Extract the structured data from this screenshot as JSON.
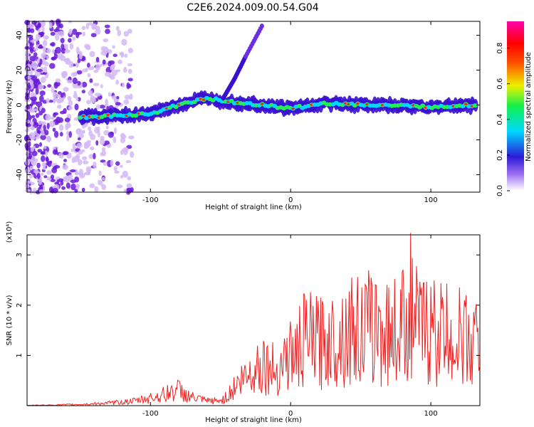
{
  "title": "C2E6.2024.009.00.54.G04",
  "chart_data": [
    {
      "type": "heatmap",
      "xlabel": "Height of straight line (km)",
      "ylabel": "Frequency (Hz)",
      "xlim": [
        -188,
        135
      ],
      "ylim": [
        -50,
        48
      ],
      "x_ticks": [
        -100,
        0,
        100
      ],
      "y_ticks": [
        -40,
        -20,
        0,
        20,
        40
      ],
      "colorbar": {
        "label": "Normalized spectral amplitude",
        "range": [
          0.0,
          0.95
        ],
        "ticks": [
          "0.0",
          "0.2",
          "0.4",
          "0.6",
          "0.8"
        ]
      },
      "ridge": {
        "description_points": [
          {
            "x": -150,
            "y": -7
          },
          {
            "x": -120,
            "y": -6
          },
          {
            "x": -100,
            "y": -5
          },
          {
            "x": -80,
            "y": 0
          },
          {
            "x": -60,
            "y": 4
          },
          {
            "x": -45,
            "y": 2
          },
          {
            "x": -30,
            "y": 1
          },
          {
            "x": 0,
            "y": -2
          },
          {
            "x": 25,
            "y": 1
          },
          {
            "x": 60,
            "y": 0
          },
          {
            "x": 100,
            "y": -1
          },
          {
            "x": 133,
            "y": 0
          }
        ],
        "branch_points": [
          {
            "x": -48,
            "y": 4
          },
          {
            "x": -40,
            "y": 15
          },
          {
            "x": -32,
            "y": 28
          },
          {
            "x": -20,
            "y": 46
          }
        ]
      }
    },
    {
      "type": "line",
      "xlabel": "Height of straight line (km)",
      "ylabel": "SNR (10 * v/v)",
      "yunit_label": "(x10⁴)",
      "xlim": [
        -188,
        135
      ],
      "ylim": [
        0,
        3.4
      ],
      "x_ticks": [
        -100,
        0,
        100
      ],
      "y_ticks": [
        1,
        2,
        3
      ],
      "color": "#ee2222",
      "series": [
        {
          "x": [
            -188,
            -170,
            -150,
            -130,
            -110,
            -100,
            -90,
            -85,
            -80,
            -75,
            -70,
            -60,
            -50,
            -45,
            -40,
            -35,
            -30,
            -25,
            -20,
            -15,
            -10,
            -5,
            0,
            5,
            10,
            20,
            30,
            40,
            50,
            60,
            70,
            80,
            85,
            90,
            100,
            110,
            120,
            130,
            135
          ],
          "values": [
            0.01,
            0.02,
            0.04,
            0.08,
            0.15,
            0.25,
            0.35,
            0.45,
            0.5,
            0.35,
            0.25,
            0.15,
            0.15,
            0.3,
            0.6,
            0.8,
            1.0,
            1.2,
            1.4,
            1.2,
            1.1,
            1.5,
            1.6,
            1.7,
            2.1,
            2.0,
            2.1,
            2.4,
            2.4,
            2.5,
            2.3,
            2.6,
            3.3,
            2.5,
            2.4,
            2.3,
            2.2,
            2.0,
            2.1
          ]
        }
      ]
    }
  ]
}
